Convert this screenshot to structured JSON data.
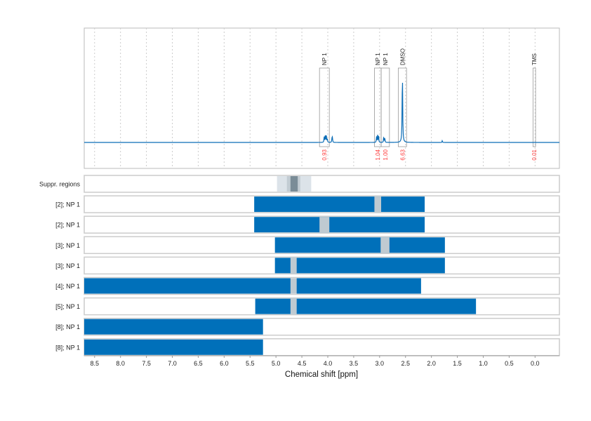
{
  "chart_data": {
    "type": "line",
    "xlabel": "Chemical shift [ppm]",
    "xlim": [
      8.7,
      -0.47
    ],
    "x_reversed": true,
    "x_ticks": [
      "8.5",
      "8.0",
      "7.5",
      "7.0",
      "6.5",
      "6.0",
      "5.5",
      "5.0",
      "4.5",
      "4.0",
      "3.5",
      "3.0",
      "2.5",
      "2.0",
      "1.5",
      "1.0",
      "0.5",
      "0.0"
    ],
    "grid": true,
    "colors": {
      "spectrum": "#0b6db7",
      "bar": "#0070ba",
      "gap": "#bfcad1",
      "integral": "#ff3b3b",
      "box": "#999999"
    },
    "spectrum_peaks": [
      {
        "ppm": 4.07,
        "height": 0.1
      },
      {
        "ppm": 4.05,
        "height": 0.13
      },
      {
        "ppm": 4.03,
        "height": 0.14
      },
      {
        "ppm": 4.01,
        "height": 0.07
      },
      {
        "ppm": 3.92,
        "height": 0.06
      },
      {
        "ppm": 3.91,
        "height": 0.08
      },
      {
        "ppm": 3.06,
        "height": 0.09
      },
      {
        "ppm": 3.04,
        "height": 0.12
      },
      {
        "ppm": 3.02,
        "height": 0.11
      },
      {
        "ppm": 2.92,
        "height": 0.1
      },
      {
        "ppm": 2.9,
        "height": 0.08
      },
      {
        "ppm": 2.56,
        "height": 1.0
      },
      {
        "ppm": 1.79,
        "height": 0.03
      }
    ],
    "annotations": [
      {
        "label": "NP 1",
        "from": 4.16,
        "to": 3.97,
        "integral": "0.93"
      },
      {
        "label": "NP 1",
        "from": 3.1,
        "to": 2.97,
        "integral": "1.04"
      },
      {
        "label": "NP 1",
        "from": 2.97,
        "to": 2.81,
        "integral": "1.00"
      },
      {
        "label": "DMSO",
        "from": 2.64,
        "to": 2.48,
        "integral": "6.63"
      },
      {
        "label": "TMS",
        "from": 0.04,
        "to": -0.01,
        "integral": "0.01"
      }
    ],
    "suppr_regions": {
      "label": "Suppr. regions",
      "bands": [
        {
          "from": 4.98,
          "to": 4.32,
          "level": "light"
        },
        {
          "from": 4.79,
          "to": 4.53,
          "level": "mid"
        },
        {
          "from": 4.72,
          "to": 4.58,
          "level": "dark"
        }
      ]
    },
    "rows": [
      {
        "label": "[2]; NP 1",
        "from": 5.42,
        "to": 2.13,
        "gap": [
          3.1,
          2.97
        ]
      },
      {
        "label": "[2]; NP 1",
        "from": 5.42,
        "to": 2.13,
        "gap": [
          4.16,
          3.97
        ]
      },
      {
        "label": "[3]; NP 1",
        "from": 5.02,
        "to": 1.74,
        "gap": [
          2.98,
          2.81
        ]
      },
      {
        "label": "[3]; NP 1",
        "from": 5.02,
        "to": 1.74,
        "gap": [
          4.72,
          4.6
        ]
      },
      {
        "label": "[4]; NP 1",
        "from": 8.7,
        "to": 2.2,
        "gap": [
          4.72,
          4.6
        ]
      },
      {
        "label": "[5]; NP 1",
        "from": 5.4,
        "to": 1.14,
        "gap": [
          4.72,
          4.6
        ]
      },
      {
        "label": "[8]; NP 1",
        "from": 8.7,
        "to": 5.25,
        "gap": null
      },
      {
        "label": "[8]; NP 1",
        "from": 8.7,
        "to": 5.25,
        "gap": null
      }
    ]
  }
}
